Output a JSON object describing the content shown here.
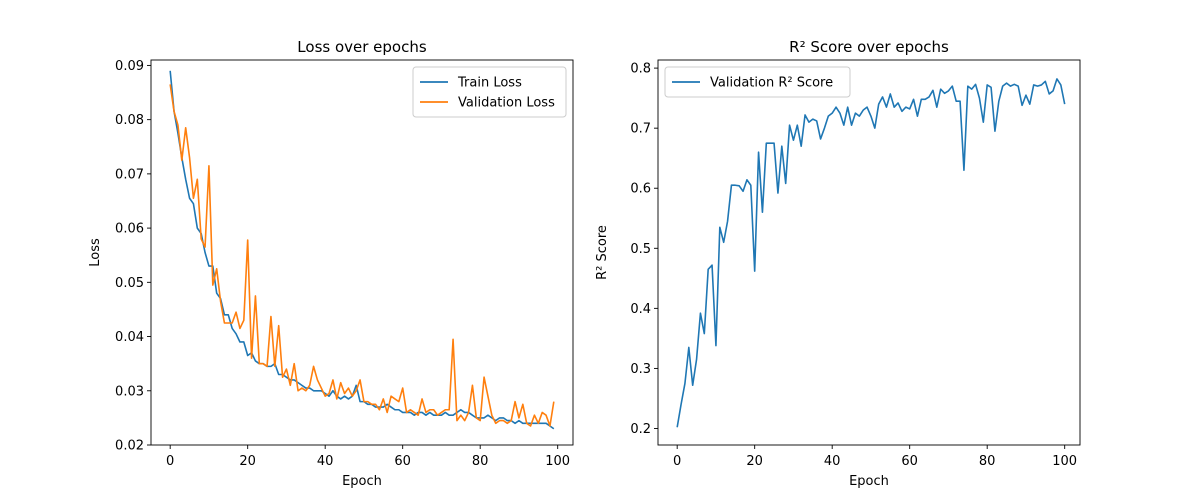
{
  "chart_data": [
    {
      "type": "line",
      "title": "Loss over epochs",
      "xlabel": "Epoch",
      "ylabel": "Loss",
      "xlim": [
        -4.95,
        103.95
      ],
      "ylim": [
        0.02,
        0.091
      ],
      "xticks": [
        0,
        20,
        40,
        60,
        80,
        100
      ],
      "yticks": [
        0.02,
        0.03,
        0.04,
        0.05,
        0.06,
        0.07,
        0.08,
        0.09
      ],
      "xtick_labels": [
        "0",
        "20",
        "40",
        "60",
        "80",
        "100"
      ],
      "ytick_labels": [
        "0.02",
        "0.03",
        "0.04",
        "0.05",
        "0.06",
        "0.07",
        "0.08",
        "0.09"
      ],
      "grid": false,
      "legend": "top-right",
      "series": [
        {
          "name": "Train Loss",
          "color": "#1f77b4",
          "values": [
            0.089,
            0.0815,
            0.0775,
            0.073,
            0.069,
            0.0655,
            0.0645,
            0.06,
            0.059,
            0.0555,
            0.053,
            0.053,
            0.048,
            0.047,
            0.044,
            0.044,
            0.0415,
            0.0405,
            0.039,
            0.039,
            0.0365,
            0.037,
            0.0355,
            0.035,
            0.035,
            0.0345,
            0.0345,
            0.035,
            0.033,
            0.033,
            0.0325,
            0.032,
            0.032,
            0.0315,
            0.031,
            0.0305,
            0.0305,
            0.03,
            0.03,
            0.03,
            0.0295,
            0.029,
            0.03,
            0.029,
            0.0285,
            0.029,
            0.0285,
            0.029,
            0.031,
            0.028,
            0.028,
            0.0275,
            0.0275,
            0.027,
            0.027,
            0.027,
            0.0275,
            0.027,
            0.0265,
            0.0265,
            0.026,
            0.026,
            0.026,
            0.0255,
            0.026,
            0.026,
            0.0255,
            0.026,
            0.0255,
            0.0255,
            0.0255,
            0.026,
            0.0255,
            0.0255,
            0.026,
            0.0265,
            0.026,
            0.026,
            0.0255,
            0.025,
            0.025,
            0.025,
            0.0255,
            0.025,
            0.0245,
            0.025,
            0.025,
            0.0245,
            0.0245,
            0.024,
            0.0245,
            0.024,
            0.024,
            0.024,
            0.024,
            0.024,
            0.024,
            0.024,
            0.0235,
            0.023
          ]
        },
        {
          "name": "Validation Loss",
          "color": "#ff7f0e",
          "values": [
            0.0865,
            0.0815,
            0.079,
            0.0725,
            0.0785,
            0.073,
            0.0655,
            0.069,
            0.058,
            0.0565,
            0.0715,
            0.0495,
            0.0525,
            0.0465,
            0.0425,
            0.0425,
            0.0425,
            0.0445,
            0.0415,
            0.043,
            0.0578,
            0.036,
            0.0475,
            0.035,
            0.035,
            0.0345,
            0.0437,
            0.0345,
            0.042,
            0.0325,
            0.034,
            0.031,
            0.035,
            0.03,
            0.0305,
            0.03,
            0.031,
            0.0345,
            0.032,
            0.0305,
            0.029,
            0.0295,
            0.032,
            0.0285,
            0.0315,
            0.0295,
            0.0305,
            0.029,
            0.03,
            0.032,
            0.028,
            0.028,
            0.0275,
            0.0275,
            0.0265,
            0.0285,
            0.026,
            0.029,
            0.0285,
            0.028,
            0.0305,
            0.026,
            0.0265,
            0.026,
            0.0255,
            0.0285,
            0.026,
            0.0265,
            0.0265,
            0.0255,
            0.026,
            0.0265,
            0.0265,
            0.0395,
            0.0245,
            0.0255,
            0.0245,
            0.026,
            0.031,
            0.025,
            0.0245,
            0.0325,
            0.029,
            0.0255,
            0.024,
            0.0245,
            0.0245,
            0.024,
            0.0245,
            0.028,
            0.025,
            0.0275,
            0.024,
            0.0235,
            0.0255,
            0.024,
            0.026,
            0.0255,
            0.0235,
            0.028
          ]
        }
      ]
    },
    {
      "type": "line",
      "title": "R² Score over epochs",
      "xlabel": "Epoch",
      "ylabel": "R² Score",
      "xlim": [
        -4.95,
        103.95
      ],
      "ylim": [
        0.1725,
        0.8135
      ],
      "xticks": [
        0,
        20,
        40,
        60,
        80,
        100
      ],
      "yticks": [
        0.2,
        0.3,
        0.4,
        0.5,
        0.6,
        0.7,
        0.8
      ],
      "xtick_labels": [
        "0",
        "20",
        "40",
        "60",
        "80",
        "100"
      ],
      "ytick_labels": [
        "0.2",
        "0.3",
        "0.4",
        "0.5",
        "0.6",
        "0.7",
        "0.8"
      ],
      "grid": false,
      "legend": "top-left",
      "series": [
        {
          "name": "Validation R² Score",
          "color": "#1f77b4",
          "values": [
            0.202,
            0.24,
            0.275,
            0.335,
            0.272,
            0.315,
            0.392,
            0.358,
            0.465,
            0.472,
            0.338,
            0.535,
            0.51,
            0.545,
            0.605,
            0.605,
            0.604,
            0.595,
            0.614,
            0.605,
            0.462,
            0.66,
            0.56,
            0.675,
            0.675,
            0.675,
            0.592,
            0.67,
            0.608,
            0.705,
            0.68,
            0.705,
            0.67,
            0.722,
            0.71,
            0.715,
            0.712,
            0.682,
            0.7,
            0.72,
            0.725,
            0.735,
            0.725,
            0.705,
            0.735,
            0.705,
            0.725,
            0.72,
            0.73,
            0.735,
            0.72,
            0.7,
            0.74,
            0.752,
            0.735,
            0.757,
            0.735,
            0.742,
            0.728,
            0.735,
            0.732,
            0.748,
            0.72,
            0.748,
            0.748,
            0.752,
            0.763,
            0.735,
            0.765,
            0.758,
            0.762,
            0.77,
            0.745,
            0.745,
            0.63,
            0.77,
            0.765,
            0.773,
            0.75,
            0.71,
            0.772,
            0.768,
            0.695,
            0.745,
            0.77,
            0.775,
            0.77,
            0.773,
            0.77,
            0.738,
            0.755,
            0.74,
            0.772,
            0.77,
            0.772,
            0.778,
            0.757,
            0.762,
            0.782,
            0.772,
            0.74
          ]
        }
      ]
    }
  ]
}
